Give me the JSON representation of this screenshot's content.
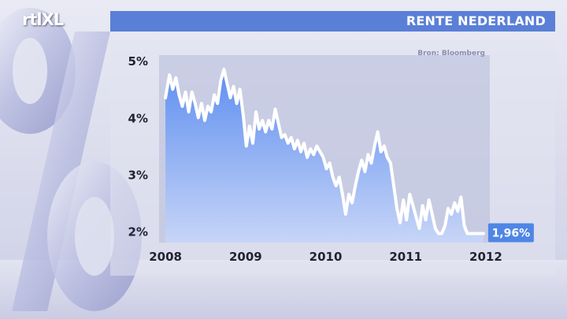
{
  "logo": {
    "text": "rtlXL"
  },
  "header": {
    "title": "RENTE NEDERLAND"
  },
  "colors": {
    "header_bar": "#5a7fd6",
    "line": "#ffffff",
    "fill_top": "#5f8ff0",
    "fill_bottom": "#c7d5f7",
    "end_label_bg": "#4f86e6"
  },
  "chart_data": {
    "type": "area",
    "title": "",
    "source": "Bron: Bloomberg",
    "xlabel": "",
    "ylabel": "",
    "x_ticks": [
      "2008",
      "2009",
      "2010",
      "2011",
      "2012"
    ],
    "y_ticks": [
      "5%",
      "4%",
      "3%",
      "2%"
    ],
    "ylim": [
      1.8,
      5.1
    ],
    "xlim": [
      2007.92,
      2012.05
    ],
    "grid": false,
    "end_label": "1,96%",
    "series": [
      {
        "x": [
          2008.0,
          2008.05,
          2008.09,
          2008.13,
          2008.17,
          2008.21,
          2008.25,
          2008.29,
          2008.33,
          2008.37,
          2008.41,
          2008.45,
          2008.49,
          2008.53,
          2008.57,
          2008.61,
          2008.65,
          2008.69,
          2008.73,
          2008.77,
          2008.81,
          2008.85,
          2008.89,
          2008.93,
          2008.97,
          2009.01,
          2009.05,
          2009.09,
          2009.13,
          2009.17,
          2009.21,
          2009.25,
          2009.29,
          2009.33,
          2009.37,
          2009.41,
          2009.45,
          2009.49,
          2009.53,
          2009.57,
          2009.61,
          2009.65,
          2009.69,
          2009.73,
          2009.77,
          2009.81,
          2009.85,
          2009.89,
          2009.93,
          2009.97,
          2010.01,
          2010.05,
          2010.09,
          2010.13,
          2010.17,
          2010.21,
          2010.25,
          2010.29,
          2010.33,
          2010.37,
          2010.41,
          2010.45,
          2010.49,
          2010.53,
          2010.57,
          2010.61,
          2010.65,
          2010.69,
          2010.73,
          2010.77,
          2010.81,
          2010.85,
          2010.89,
          2010.93,
          2010.97,
          2011.01,
          2011.05,
          2011.09,
          2011.13,
          2011.17,
          2011.21,
          2011.25,
          2011.29,
          2011.33,
          2011.37,
          2011.41,
          2011.45,
          2011.49,
          2011.53,
          2011.57,
          2011.61,
          2011.65,
          2011.69,
          2011.73,
          2011.77,
          2011.81,
          2011.85,
          2011.89,
          2011.93,
          2011.97
        ],
        "y": [
          4.35,
          4.75,
          4.5,
          4.7,
          4.4,
          4.2,
          4.45,
          4.1,
          4.45,
          4.25,
          4.0,
          4.25,
          3.95,
          4.2,
          4.1,
          4.4,
          4.25,
          4.65,
          4.85,
          4.6,
          4.35,
          4.55,
          4.25,
          4.5,
          4.05,
          3.5,
          3.85,
          3.55,
          4.1,
          3.8,
          3.95,
          3.75,
          3.95,
          3.8,
          4.15,
          3.9,
          3.65,
          3.7,
          3.55,
          3.65,
          3.45,
          3.6,
          3.4,
          3.55,
          3.3,
          3.45,
          3.35,
          3.5,
          3.4,
          3.3,
          3.1,
          3.2,
          2.95,
          2.8,
          2.95,
          2.65,
          2.3,
          2.65,
          2.5,
          2.8,
          3.05,
          3.25,
          3.05,
          3.35,
          3.2,
          3.5,
          3.75,
          3.4,
          3.5,
          3.3,
          3.2,
          2.8,
          2.4,
          2.15,
          2.55,
          2.2,
          2.65,
          2.45,
          2.25,
          2.05,
          2.45,
          2.2,
          2.55,
          2.3,
          2.05,
          1.96,
          1.96,
          2.1,
          2.4,
          2.3,
          2.5,
          2.35,
          2.6,
          2.1,
          1.96,
          1.96,
          1.96,
          1.96,
          1.96,
          1.96
        ]
      }
    ]
  }
}
